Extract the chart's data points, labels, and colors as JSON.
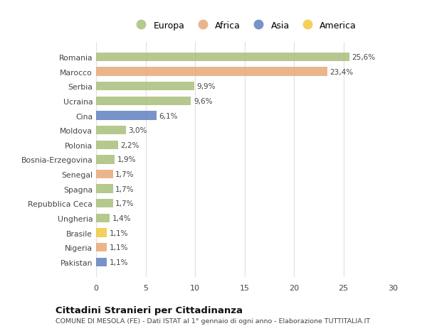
{
  "categories": [
    "Romania",
    "Marocco",
    "Serbia",
    "Ucraina",
    "Cina",
    "Moldova",
    "Polonia",
    "Bosnia-Erzegovina",
    "Senegal",
    "Spagna",
    "Repubblica Ceca",
    "Ungheria",
    "Brasile",
    "Nigeria",
    "Pakistan"
  ],
  "values": [
    25.6,
    23.4,
    9.9,
    9.6,
    6.1,
    3.0,
    2.2,
    1.9,
    1.7,
    1.7,
    1.7,
    1.4,
    1.1,
    1.1,
    1.1
  ],
  "labels": [
    "25,6%",
    "23,4%",
    "9,9%",
    "9,6%",
    "6,1%",
    "3,0%",
    "2,2%",
    "1,9%",
    "1,7%",
    "1,7%",
    "1,7%",
    "1,4%",
    "1,1%",
    "1,1%",
    "1,1%"
  ],
  "continents": [
    "Europa",
    "Africa",
    "Europa",
    "Europa",
    "Asia",
    "Europa",
    "Europa",
    "Europa",
    "Africa",
    "Europa",
    "Europa",
    "Europa",
    "America",
    "Africa",
    "Asia"
  ],
  "colors": {
    "Europa": "#a8c07a",
    "Africa": "#e8a878",
    "Asia": "#6080c0",
    "America": "#f0c840"
  },
  "xlim": [
    0,
    30
  ],
  "xticks": [
    0,
    5,
    10,
    15,
    20,
    25,
    30
  ],
  "title": "Cittadini Stranieri per Cittadinanza",
  "subtitle": "COMUNE DI MESOLA (FE) - Dati ISTAT al 1° gennaio di ogni anno - Elaborazione TUTTITALIA.IT",
  "background_color": "#ffffff",
  "grid_color": "#e0e0e0",
  "legend_entries": [
    "Europa",
    "Africa",
    "Asia",
    "America"
  ]
}
